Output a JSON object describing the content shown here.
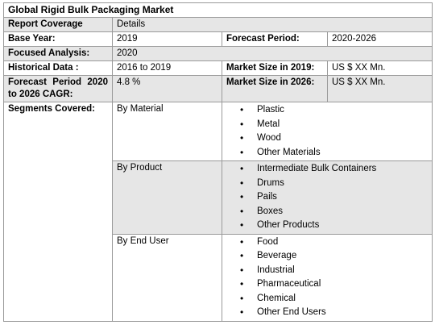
{
  "title": "Global Rigid Bulk Packaging Market",
  "report_coverage": {
    "label": "Report Coverage",
    "value": "Details"
  },
  "base_year": {
    "label": "Base Year:",
    "value": "2019"
  },
  "forecast_period": {
    "label": "Forecast Period:",
    "value": "2020-2026"
  },
  "focused_analysis": {
    "label": "Focused Analysis:",
    "value": "2020"
  },
  "historical_data": {
    "label": "Historical Data :",
    "value": "2016 to 2019"
  },
  "market_size_2019": {
    "label": "Market Size in 2019:",
    "value": "US $ XX Mn."
  },
  "cagr": {
    "label_line1": "Forecast Period 2020",
    "label_line2": "to 2026 CAGR:",
    "value": "4.8 %"
  },
  "market_size_2026": {
    "label": "Market Size in 2026:",
    "value": "US $ XX Mn."
  },
  "segments": {
    "label": "Segments Covered:",
    "groups": [
      {
        "name": "By Material",
        "items": [
          "Plastic",
          "Metal",
          "Wood",
          "Other Materials"
        ]
      },
      {
        "name": "By Product",
        "items": [
          "Intermediate Bulk Containers",
          "Drums",
          "Pails",
          "Boxes",
          "Other Products"
        ]
      },
      {
        "name": "By End User",
        "items": [
          "Food",
          "Beverage",
          "Industrial",
          "Pharmaceutical",
          "Chemical",
          "Other End Users"
        ]
      }
    ]
  }
}
